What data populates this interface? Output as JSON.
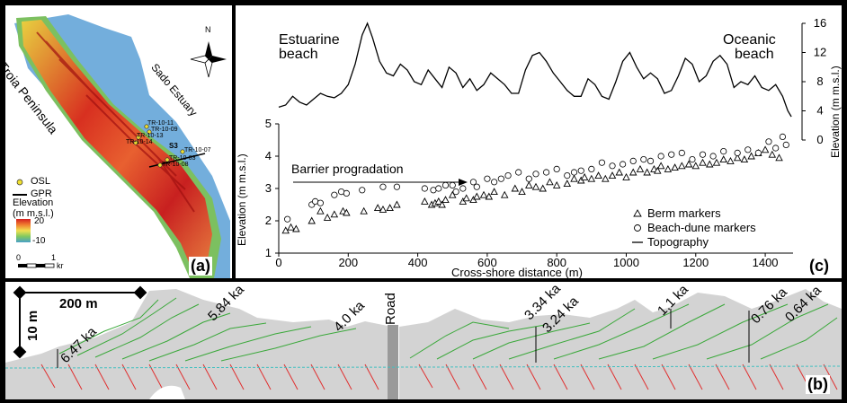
{
  "panel_a": {
    "badge": "(a)",
    "place_labels": {
      "peninsula": "Troia Peninsula",
      "estuary": "Sado Estuary"
    },
    "north_label": "N",
    "sample_labels": [
      "TR-10-11",
      "TR-10-09",
      "TR-10-13",
      "TR-10-14",
      "S3",
      "TR-10-07",
      "TR-10-03",
      "TR-10-08"
    ],
    "legend": {
      "osl": "OSL",
      "gpr": "GPR",
      "elevation_title_line1": "Elevation",
      "elevation_title_line2": "(m m.s.l.)",
      "max": "20",
      "min": "-10",
      "scale_0": "0",
      "scale_1": "1",
      "scale_unit": "kr"
    },
    "colors": {
      "sea": "#5aa0d6",
      "low": "#4aa0c8",
      "mid": "#f0e050",
      "high": "#d02020"
    }
  },
  "panel_c": {
    "badge": "(c)",
    "label_estuarine_1": "Estuarine",
    "label_estuarine_2": "beach",
    "label_oceanic_1": "Oceanic",
    "label_oceanic_2": "beach",
    "arrow_label": "Barrier progradation",
    "legend": {
      "berm": "Berm markers",
      "dune": "Beach-dune markers",
      "topo": "Topography"
    }
  },
  "panel_b": {
    "badge": "(b)",
    "scale_h": "200 m",
    "scale_v": "10 m",
    "road": "Road",
    "ages": [
      "6.47 ka",
      "5.84 ka",
      "4.0 ka",
      "3.34 ka",
      "3.24 ka",
      "1.1 ka",
      "0.76 ka",
      "0.64 ka"
    ],
    "colors": {
      "fill": "#d3d3d3",
      "dune_lines": "#3aa83a",
      "lower_lines": "#e03030",
      "water": "#40c0c0"
    }
  },
  "chart_data": {
    "type": "scatter",
    "title": "",
    "xlabel": "Cross-shore distance (m)",
    "ylabel": "Elevation (m m.s.l.)",
    "y2label": "Elevation (m m.s.l.)",
    "xlim": [
      0,
      1480
    ],
    "ylim": [
      1,
      5
    ],
    "y2lim": [
      0,
      16
    ],
    "xticks": [
      0,
      200,
      400,
      600,
      800,
      1000,
      1200,
      1400
    ],
    "yticks": [
      1,
      2,
      3,
      4,
      5
    ],
    "y2ticks": [
      0,
      4,
      8,
      12,
      16
    ],
    "legend_position": "bottom-right",
    "series": [
      {
        "name": "Berm markers",
        "marker": "triangle",
        "x": [
          20,
          35,
          50,
          95,
          120,
          140,
          160,
          185,
          195,
          245,
          285,
          300,
          320,
          340,
          420,
          440,
          450,
          460,
          470,
          480,
          500,
          530,
          540,
          560,
          570,
          590,
          605,
          620,
          650,
          680,
          700,
          720,
          740,
          760,
          780,
          800,
          830,
          850,
          870,
          880,
          900,
          920,
          940,
          960,
          980,
          1000,
          1020,
          1040,
          1060,
          1080,
          1090,
          1100,
          1120,
          1140,
          1160,
          1180,
          1200,
          1220,
          1240,
          1260,
          1280,
          1300,
          1320,
          1340,
          1360,
          1380,
          1400,
          1420,
          1440
        ],
        "y": [
          1.7,
          1.8,
          1.75,
          2.0,
          2.3,
          2.1,
          2.2,
          2.3,
          2.25,
          2.3,
          2.4,
          2.35,
          2.4,
          2.5,
          2.6,
          2.5,
          2.55,
          2.6,
          2.5,
          2.65,
          2.8,
          2.6,
          2.7,
          2.65,
          2.75,
          2.8,
          2.75,
          2.9,
          2.8,
          3.0,
          2.9,
          3.1,
          3.05,
          3.0,
          3.2,
          3.1,
          3.15,
          3.3,
          3.25,
          3.35,
          3.3,
          3.4,
          3.3,
          3.4,
          3.5,
          3.35,
          3.5,
          3.6,
          3.5,
          3.6,
          3.55,
          3.7,
          3.6,
          3.65,
          3.7,
          3.75,
          3.7,
          3.8,
          3.75,
          3.8,
          3.9,
          3.85,
          3.95,
          3.9,
          4.0,
          4.1,
          4.2,
          4.05,
          3.95
        ]
      },
      {
        "name": "Beach-dune markers",
        "marker": "circle",
        "x": [
          25,
          95,
          105,
          120,
          160,
          180,
          195,
          240,
          300,
          340,
          420,
          445,
          460,
          480,
          500,
          510,
          530,
          560,
          570,
          600,
          620,
          640,
          660,
          690,
          720,
          740,
          770,
          800,
          830,
          850,
          870,
          900,
          930,
          960,
          990,
          1020,
          1050,
          1070,
          1100,
          1130,
          1160,
          1190,
          1220,
          1250,
          1280,
          1320,
          1350,
          1380,
          1410,
          1430,
          1450,
          1460
        ],
        "y": [
          2.05,
          2.5,
          2.6,
          2.55,
          2.8,
          2.9,
          2.85,
          2.95,
          3.05,
          3.05,
          3.0,
          2.95,
          3.0,
          3.1,
          3.1,
          2.9,
          3.0,
          3.2,
          3.05,
          3.3,
          3.2,
          3.3,
          3.4,
          3.5,
          3.3,
          3.45,
          3.5,
          3.6,
          3.4,
          3.5,
          3.55,
          3.6,
          3.8,
          3.7,
          3.75,
          3.85,
          3.9,
          3.85,
          4.0,
          4.05,
          4.1,
          3.9,
          4.05,
          4.0,
          4.15,
          4.1,
          4.2,
          4.1,
          4.45,
          4.25,
          4.6,
          4.35
        ]
      },
      {
        "name": "Topography",
        "axis": "right",
        "x": [
          0,
          20,
          40,
          60,
          80,
          100,
          120,
          140,
          160,
          180,
          200,
          220,
          240,
          255,
          270,
          290,
          310,
          330,
          350,
          370,
          390,
          410,
          430,
          450,
          470,
          490,
          510,
          530,
          550,
          570,
          590,
          610,
          630,
          650,
          670,
          690,
          710,
          730,
          750,
          770,
          790,
          810,
          830,
          850,
          870,
          890,
          910,
          930,
          950,
          970,
          990,
          1010,
          1030,
          1050,
          1070,
          1090,
          1110,
          1130,
          1150,
          1170,
          1190,
          1210,
          1230,
          1250,
          1270,
          1290,
          1310,
          1330,
          1350,
          1370,
          1390,
          1410,
          1430,
          1450,
          1465,
          1475
        ],
        "y": [
          4.5,
          4.8,
          6.0,
          5.2,
          4.8,
          5.6,
          6.4,
          6.0,
          5.8,
          6.4,
          7.6,
          10.4,
          14.4,
          16.0,
          14.0,
          10.8,
          9.2,
          8.8,
          10.4,
          9.6,
          8.0,
          7.6,
          9.6,
          8.4,
          7.2,
          10.0,
          9.2,
          7.2,
          8.4,
          6.8,
          7.6,
          9.2,
          8.4,
          7.6,
          6.4,
          6.4,
          9.6,
          11.6,
          12.0,
          10.8,
          9.2,
          8.0,
          6.8,
          6.0,
          6.0,
          8.4,
          7.6,
          6.0,
          5.6,
          8.0,
          10.8,
          12.0,
          10.0,
          8.4,
          9.2,
          8.4,
          6.4,
          6.8,
          8.8,
          11.2,
          10.4,
          8.0,
          8.8,
          10.8,
          11.6,
          10.4,
          7.2,
          8.0,
          7.6,
          8.8,
          7.2,
          6.8,
          7.6,
          6.0,
          4.0,
          3.2
        ]
      }
    ]
  }
}
